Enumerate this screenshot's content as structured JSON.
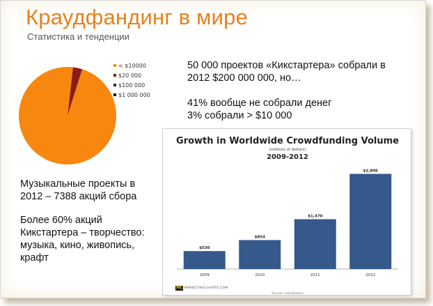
{
  "slide": {
    "title": "Краудфандинг в мире",
    "subtitle": "Статистика и тенденции"
  },
  "colors": {
    "accent": "#e8801c",
    "bar": "#35598a"
  },
  "pie_chart": {
    "type": "pie",
    "legend": [
      {
        "label": "< $10000",
        "color": "#f7870f"
      },
      {
        "label": "$20 000",
        "color": "#8b1d12"
      },
      {
        "label": "$100 000",
        "color": "#1f3140"
      },
      {
        "label": "$1 000 000",
        "color": "#0f0f0f"
      }
    ],
    "values": [
      96.9,
      3.0,
      0.08,
      0.02
    ]
  },
  "text": {
    "projects_line1": "50 000 проектов «Кикстартера» собрали в",
    "projects_line2": "2012 $200 000 000, но…",
    "no_money": "41% вообще не собрали денег",
    "over_10k": "3% собрали > $10 000",
    "music_line1": "Музыкальные проекты в",
    "music_line2": "2012 – 7388 акций сбора",
    "creative_line1": "Более 60% акций",
    "creative_line2": "Кикстартера – творчество:",
    "creative_line3": "музыка, кино, живопись,",
    "creative_line4": "крафт"
  },
  "chart_data": {
    "type": "bar",
    "title": "Growth in Worldwide Crowdfunding Volume",
    "subtitle": "(millions of dollars)",
    "period": "2009-2012",
    "categories": [
      "2009",
      "2010",
      "2011",
      "2012"
    ],
    "values": [
      530,
      854,
      1470,
      2806
    ],
    "value_labels": [
      "$530",
      "$854",
      "$1,470",
      "$2,806"
    ],
    "ylim": [
      0,
      3000
    ],
    "grid": false,
    "source": "Source: massolution",
    "brand": "MARKETINGCHARTS.COM",
    "brand_logo": "MC"
  }
}
